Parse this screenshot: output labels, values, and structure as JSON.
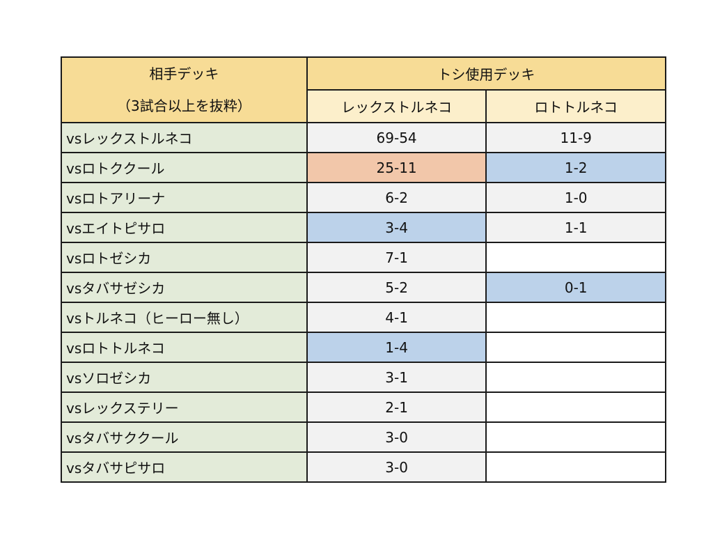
{
  "table": {
    "opponent_header_line1": "相手デッキ",
    "opponent_header_line2": "（3試合以上を抜粋）",
    "used_deck_header": "トシ使用デッキ",
    "used_decks": [
      "レックストルネコ",
      "ロトトルネコ"
    ],
    "rows": [
      {
        "opponent": "vsレックストルネコ",
        "a": "69-54",
        "b": "11-9"
      },
      {
        "opponent": "vsロトククール",
        "a": "25-11",
        "b": "1-2"
      },
      {
        "opponent": "vsロトアリーナ",
        "a": "6-2",
        "b": "1-0"
      },
      {
        "opponent": "vsエイトピサロ",
        "a": "3-4",
        "b": "1-1"
      },
      {
        "opponent": "vsロトゼシカ",
        "a": "7-1",
        "b": ""
      },
      {
        "opponent": "vsタバサゼシカ",
        "a": "5-2",
        "b": "0-1"
      },
      {
        "opponent": "vsトルネコ（ヒーロー無し）",
        "a": "4-1",
        "b": ""
      },
      {
        "opponent": "vsロトトルネコ",
        "a": "1-4",
        "b": ""
      },
      {
        "opponent": "vsソロゼシカ",
        "a": "3-1",
        "b": ""
      },
      {
        "opponent": "vsレックステリー",
        "a": "2-1",
        "b": ""
      },
      {
        "opponent": "vsタバサククール",
        "a": "3-0",
        "b": ""
      },
      {
        "opponent": "vsタバサピサロ",
        "a": "3-0",
        "b": ""
      }
    ]
  },
  "colors": {
    "header_yellow": "#f7dc96",
    "header_pale": "#fcefcb",
    "opponent_green": "#e3ebd9",
    "value_gray": "#f2f2f2",
    "highlight_orange": "#f2c7aa",
    "highlight_blue": "#bcd2ea"
  }
}
